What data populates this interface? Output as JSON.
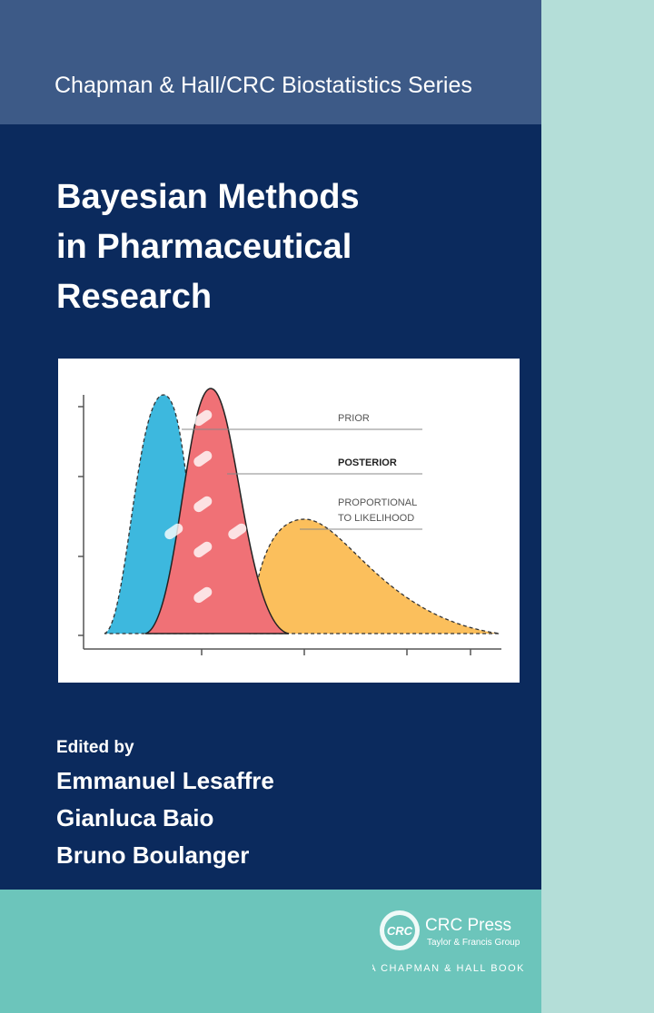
{
  "series_title": "Chapman & Hall/CRC Biostatistics Series",
  "title_lines": [
    "Bayesian Methods",
    "in Pharmaceutical",
    "Research"
  ],
  "illustration": {
    "labels": [
      "PRIOR",
      "POSTERIOR",
      "PROPORTIONAL",
      "TO LIKELIHOOD"
    ]
  },
  "editors": {
    "heading": "Edited by",
    "names": [
      "Emmanuel Lesaffre",
      "Gianluca Baio",
      "Bruno Boulanger"
    ]
  },
  "publisher": {
    "logo": "CRC",
    "name": "CRC Press",
    "group": "Taylor & Francis Group",
    "imprint": "A CHAPMAN & HALL BOOK"
  }
}
